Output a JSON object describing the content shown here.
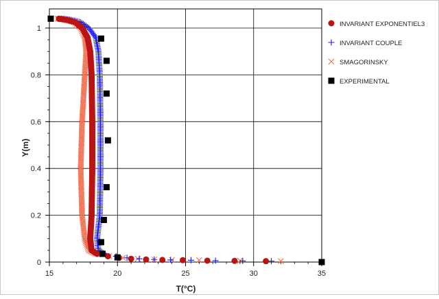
{
  "chart_data": {
    "type": "scatter",
    "title": "",
    "xlabel": "T(°C)",
    "ylabel": "Y(m)",
    "xlim": [
      15,
      35
    ],
    "ylim": [
      0,
      1.05
    ],
    "xticks": [
      "15",
      "20",
      "25",
      "30",
      "35"
    ],
    "yticks": [
      "0",
      "0.2",
      "0.4",
      "0.6",
      "0.8",
      "1"
    ],
    "grid": true,
    "legend_position": "right",
    "series": [
      {
        "name": "INVARIANT EXPONENTIEL3",
        "marker": "circle",
        "color": "#b81414",
        "points": [
          [
            15.7,
            1.04
          ],
          [
            16.3,
            1.035
          ],
          [
            16.9,
            1.025
          ],
          [
            17.4,
            1.0
          ],
          [
            17.8,
            0.96
          ],
          [
            18.0,
            0.9
          ],
          [
            18.1,
            0.8
          ],
          [
            18.15,
            0.6
          ],
          [
            18.15,
            0.4
          ],
          [
            18.1,
            0.2
          ],
          [
            18.0,
            0.1
          ],
          [
            18.1,
            0.05
          ],
          [
            18.5,
            0.035
          ],
          [
            19.3,
            0.025
          ],
          [
            20.1,
            0.018
          ],
          [
            21.0,
            0.014
          ],
          [
            22.1,
            0.011
          ],
          [
            23.3,
            0.009
          ],
          [
            24.8,
            0.008
          ],
          [
            26.6,
            0.006
          ],
          [
            28.6,
            0.005
          ],
          [
            30.9,
            0.004
          ]
        ]
      },
      {
        "name": "INVARIANT COUPLE",
        "marker": "plus",
        "color": "#1a1ae6",
        "points": [
          [
            15.9,
            1.04
          ],
          [
            16.6,
            1.035
          ],
          [
            17.3,
            1.025
          ],
          [
            17.9,
            1.0
          ],
          [
            18.4,
            0.96
          ],
          [
            18.6,
            0.9
          ],
          [
            18.7,
            0.8
          ],
          [
            18.75,
            0.6
          ],
          [
            18.75,
            0.4
          ],
          [
            18.7,
            0.2
          ],
          [
            18.5,
            0.1
          ],
          [
            18.6,
            0.05
          ],
          [
            19.1,
            0.035
          ],
          [
            19.9,
            0.025
          ],
          [
            20.7,
            0.018
          ],
          [
            21.6,
            0.014
          ],
          [
            22.7,
            0.011
          ],
          [
            23.9,
            0.009
          ],
          [
            25.4,
            0.008
          ],
          [
            27.2,
            0.006
          ],
          [
            29.2,
            0.005
          ],
          [
            31.3,
            0.004
          ]
        ]
      },
      {
        "name": "SMAGORINSKY",
        "marker": "x",
        "color": "#f07050",
        "points": [
          [
            15.6,
            1.04
          ],
          [
            16.2,
            1.035
          ],
          [
            16.8,
            1.025
          ],
          [
            17.3,
            1.0
          ],
          [
            17.6,
            0.96
          ],
          [
            17.7,
            0.9
          ],
          [
            17.6,
            0.8
          ],
          [
            17.4,
            0.6
          ],
          [
            17.3,
            0.4
          ],
          [
            17.4,
            0.2
          ],
          [
            17.6,
            0.1
          ],
          [
            17.9,
            0.05
          ],
          [
            18.4,
            0.035
          ],
          [
            19.4,
            0.025
          ],
          [
            20.4,
            0.018
          ],
          [
            21.5,
            0.014
          ],
          [
            22.7,
            0.011
          ],
          [
            24.0,
            0.009
          ],
          [
            26.0,
            0.008
          ],
          [
            29.0,
            0.006
          ],
          [
            32.0,
            0.004
          ]
        ]
      },
      {
        "name": "EXPERIMENTAL",
        "marker": "square",
        "color": "#000000",
        "points": [
          [
            15.1,
            1.04
          ],
          [
            18.8,
            0.955
          ],
          [
            19.2,
            0.86
          ],
          [
            19.2,
            0.72
          ],
          [
            19.3,
            0.52
          ],
          [
            19.2,
            0.32
          ],
          [
            19.0,
            0.18
          ],
          [
            18.8,
            0.085
          ],
          [
            18.9,
            0.035
          ],
          [
            20.0,
            0.02
          ],
          [
            35.0,
            0.0
          ]
        ]
      }
    ]
  }
}
